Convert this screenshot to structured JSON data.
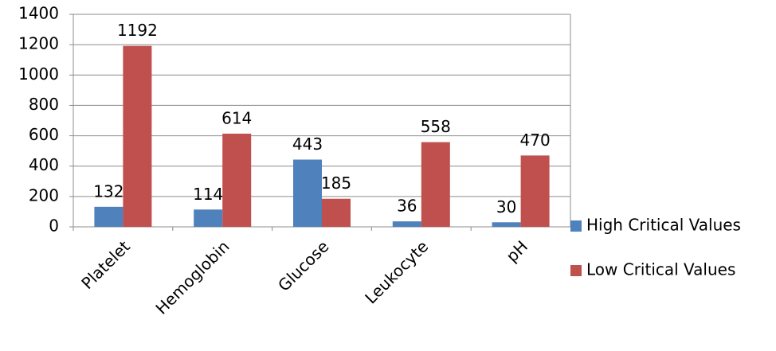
{
  "chart_data": {
    "type": "bar",
    "categories": [
      "Platelet",
      "Hemoglobin",
      "Glucose",
      "Leukocyte",
      "pH"
    ],
    "series": [
      {
        "name": "High Critical Values",
        "color": "#4f81bd",
        "values": [
          132,
          114,
          443,
          36,
          30
        ]
      },
      {
        "name": "Low Critical Values",
        "color": "#c0504d",
        "values": [
          1192,
          614,
          185,
          558,
          470
        ]
      }
    ],
    "ylim": [
      0,
      1400
    ],
    "yticks": [
      0,
      200,
      400,
      600,
      800,
      1000,
      1200,
      1400
    ],
    "grid": true
  }
}
